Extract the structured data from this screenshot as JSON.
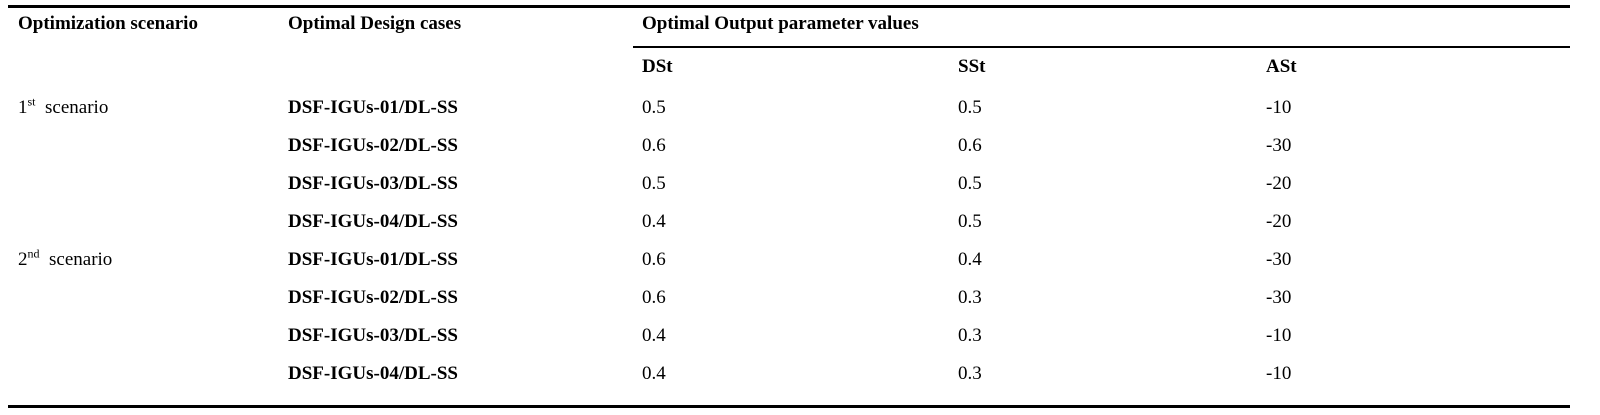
{
  "table": {
    "headers": {
      "scenario": "Optimization scenario",
      "design_cases": "Optimal Design cases",
      "output_group": "Optimal Output parameter values",
      "dst": "DSt",
      "sst": "SSt",
      "ast": "ASt"
    },
    "scenarios": [
      {
        "number": "1",
        "suffix": "st",
        "label": "scenario"
      },
      {
        "number": "2",
        "suffix": "nd",
        "label": "scenario"
      }
    ],
    "rows": [
      {
        "case": "DSF-IGUs-01/DL-SS",
        "dst": "0.5",
        "sst": "0.5",
        "ast": "-10"
      },
      {
        "case": "DSF-IGUs-02/DL-SS",
        "dst": "0.6",
        "sst": "0.6",
        "ast": "-30"
      },
      {
        "case": "DSF-IGUs-03/DL-SS",
        "dst": "0.5",
        "sst": "0.5",
        "ast": "-20"
      },
      {
        "case": "DSF-IGUs-04/DL-SS",
        "dst": "0.4",
        "sst": "0.5",
        "ast": "-20"
      },
      {
        "case": "DSF-IGUs-01/DL-SS",
        "dst": "0.6",
        "sst": "0.4",
        "ast": "-30"
      },
      {
        "case": "DSF-IGUs-02/DL-SS",
        "dst": "0.6",
        "sst": "0.3",
        "ast": "-30"
      },
      {
        "case": "DSF-IGUs-03/DL-SS",
        "dst": "0.4",
        "sst": "0.3",
        "ast": "-10"
      },
      {
        "case": "DSF-IGUs-04/DL-SS",
        "dst": "0.4",
        "sst": "0.3",
        "ast": "-10"
      }
    ]
  }
}
